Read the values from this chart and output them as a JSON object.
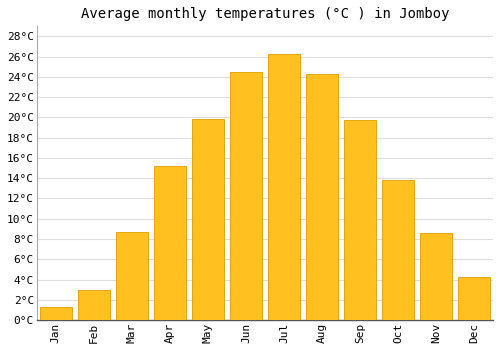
{
  "title": "Average monthly temperatures (°C ) in Jomboy",
  "months": [
    "Jan",
    "Feb",
    "Mar",
    "Apr",
    "May",
    "Jun",
    "Jul",
    "Aug",
    "Sep",
    "Oct",
    "Nov",
    "Dec"
  ],
  "values": [
    1.3,
    3.0,
    8.7,
    15.2,
    19.8,
    24.5,
    26.3,
    24.3,
    19.7,
    13.8,
    8.6,
    4.2
  ],
  "bar_color": "#FFC020",
  "bar_edge_color": "#DAA000",
  "background_color": "#FFFFFF",
  "grid_color": "#DDDDDD",
  "ylim": [
    0,
    29
  ],
  "yticks": [
    0,
    2,
    4,
    6,
    8,
    10,
    12,
    14,
    16,
    18,
    20,
    22,
    24,
    26,
    28
  ],
  "ytick_labels": [
    "0°C",
    "2°C",
    "4°C",
    "6°C",
    "8°C",
    "10°C",
    "12°C",
    "14°C",
    "16°C",
    "18°C",
    "20°C",
    "22°C",
    "24°C",
    "26°C",
    "28°C"
  ],
  "title_fontsize": 10,
  "tick_fontsize": 8,
  "font_family": "monospace",
  "bar_width": 0.85
}
